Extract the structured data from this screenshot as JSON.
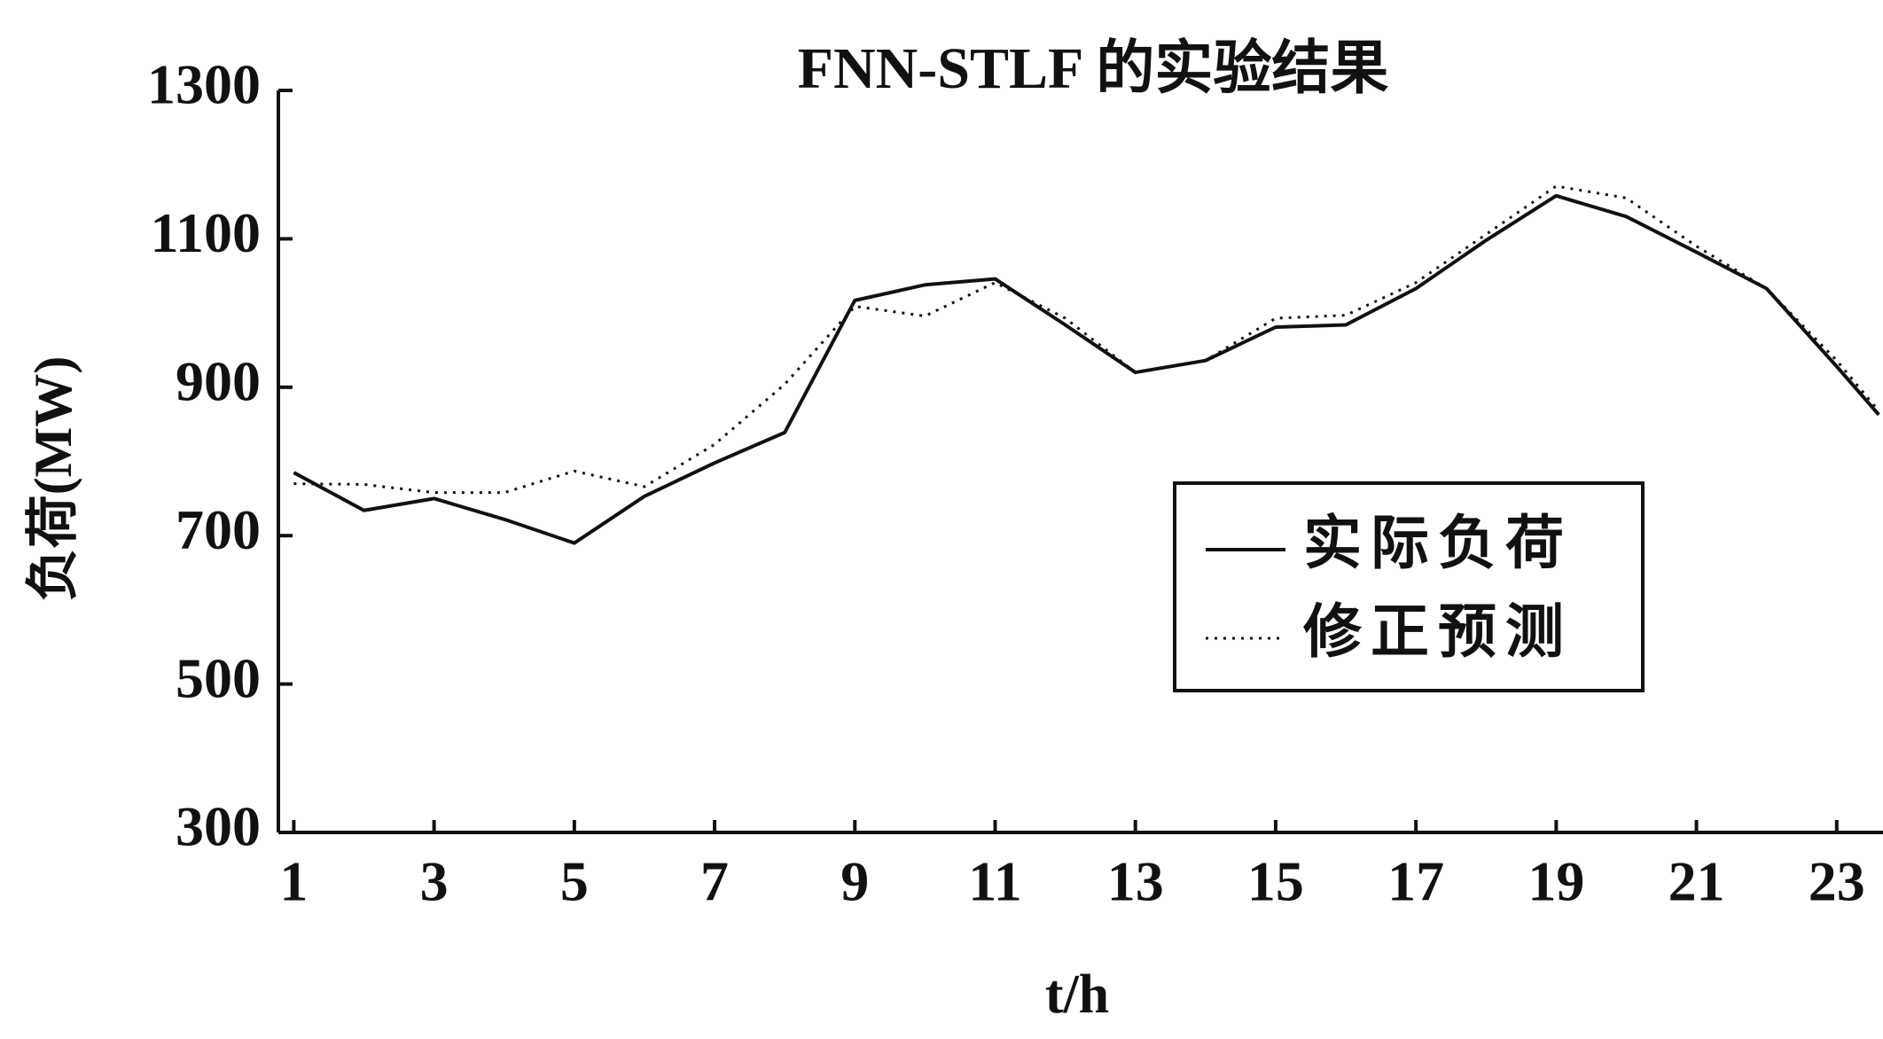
{
  "chart_data": {
    "type": "line",
    "title": "FNN-STLF 的实验结果",
    "x_label": "t/h",
    "y_label": "负荷(MW)",
    "x": [
      1,
      2,
      3,
      4,
      5,
      6,
      7,
      8,
      9,
      10,
      11,
      12,
      13,
      14,
      15,
      16,
      17,
      18,
      19,
      20,
      21,
      22,
      23,
      23.6
    ],
    "series": [
      {
        "name": "实际负荷",
        "color": "#111111",
        "style": "solid",
        "values": [
          785,
          734,
          750,
          722,
          690,
          753,
          798,
          839,
          1017,
          1038,
          1046,
          984,
          920,
          936,
          981,
          984,
          1033,
          1098,
          1158,
          1130,
          1082,
          1033,
          928,
          863
        ]
      },
      {
        "name": "修正预测",
        "color": "#111111",
        "style": "dotted",
        "values": [
          770,
          769,
          758,
          758,
          787,
          766,
          823,
          904,
          1009,
          996,
          1041,
          993,
          920,
          936,
          993,
          997,
          1041,
          1106,
          1171,
          1155,
          1090,
          1033,
          936,
          868
        ]
      }
    ],
    "xlim": [
      0.78,
      23.66
    ],
    "xticks": [
      1,
      3,
      5,
      7,
      9,
      11,
      13,
      15,
      17,
      19,
      21,
      23
    ],
    "ylim": [
      300,
      1300
    ],
    "yticks": [
      300,
      500,
      700,
      900,
      1100,
      1300
    ],
    "grid": false,
    "legend": "right"
  }
}
